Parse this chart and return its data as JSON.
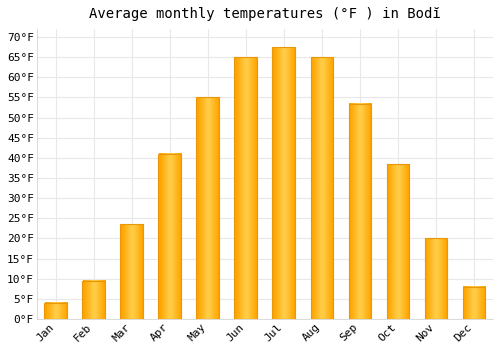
{
  "title": "Average monthly temperatures (°F ) in Bodĭ",
  "months": [
    "Jan",
    "Feb",
    "Mar",
    "Apr",
    "May",
    "Jun",
    "Jul",
    "Aug",
    "Sep",
    "Oct",
    "Nov",
    "Dec"
  ],
  "values": [
    4,
    9.5,
    23.5,
    41,
    55,
    65,
    67.5,
    65,
    53.5,
    38.5,
    20,
    8
  ],
  "bar_color_main": "#FFB700",
  "bar_color_light": "#FFD04D",
  "bar_color_edge": "#E8960A",
  "background_color": "#FFFFFF",
  "grid_color": "#E8E8E8",
  "yticks": [
    0,
    5,
    10,
    15,
    20,
    25,
    30,
    35,
    40,
    45,
    50,
    55,
    60,
    65,
    70
  ],
  "ylim": [
    0,
    72
  ],
  "title_fontsize": 10,
  "tick_fontsize": 8,
  "font_family": "monospace"
}
